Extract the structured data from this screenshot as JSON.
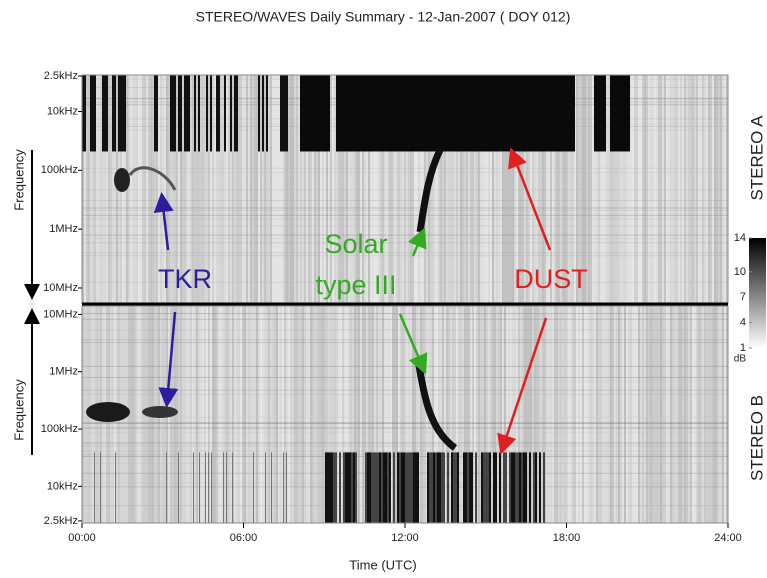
{
  "chart_data": {
    "type": "spectrogram",
    "title": "STEREO/WAVES Daily Summary - 12-Jan-2007 ( DOY 012)",
    "xlabel": "Time (UTC)",
    "xlim": [
      0,
      24
    ],
    "xticks": [
      {
        "value": 0,
        "label": "00:00"
      },
      {
        "value": 6,
        "label": "06:00"
      },
      {
        "value": 12,
        "label": "12:00"
      },
      {
        "value": 18,
        "label": "18:00"
      },
      {
        "value": 24,
        "label": "24:00"
      }
    ],
    "panels": [
      {
        "name": "STEREO A",
        "ylabel": "Frequency",
        "yscale": "log",
        "ylim": [
          18000000,
          2400
        ],
        "yticks": [
          {
            "value": 2500,
            "label": "2.5kHz"
          },
          {
            "value": 10000,
            "label": "10kHz"
          },
          {
            "value": 100000,
            "label": "100kHz"
          },
          {
            "value": 1000000,
            "label": "1MHz"
          },
          {
            "value": 10000000,
            "label": "10MHz"
          }
        ]
      },
      {
        "name": "STEREO B",
        "ylabel": "Frequency",
        "yscale": "log",
        "ylim": [
          2300,
          14000000
        ],
        "yticks": [
          {
            "value": 10000000,
            "label": "10MHz"
          },
          {
            "value": 1000000,
            "label": "1MHz"
          },
          {
            "value": 100000,
            "label": "100kHz"
          },
          {
            "value": 10000,
            "label": "10kHz"
          },
          {
            "value": 2500,
            "label": "2.5kHz"
          }
        ]
      }
    ],
    "colorbar": {
      "lim": [
        1,
        14
      ],
      "ticks": [
        1,
        4,
        7,
        10,
        14
      ],
      "unit": "dB"
    },
    "annotations": [
      {
        "lines": [
          "TKR"
        ],
        "color": "#2b1d9e"
      },
      {
        "lines": [
          "Solar",
          "type III"
        ],
        "color": "#33aa22"
      },
      {
        "lines": [
          "DUST"
        ],
        "color": "#e02020"
      }
    ]
  }
}
